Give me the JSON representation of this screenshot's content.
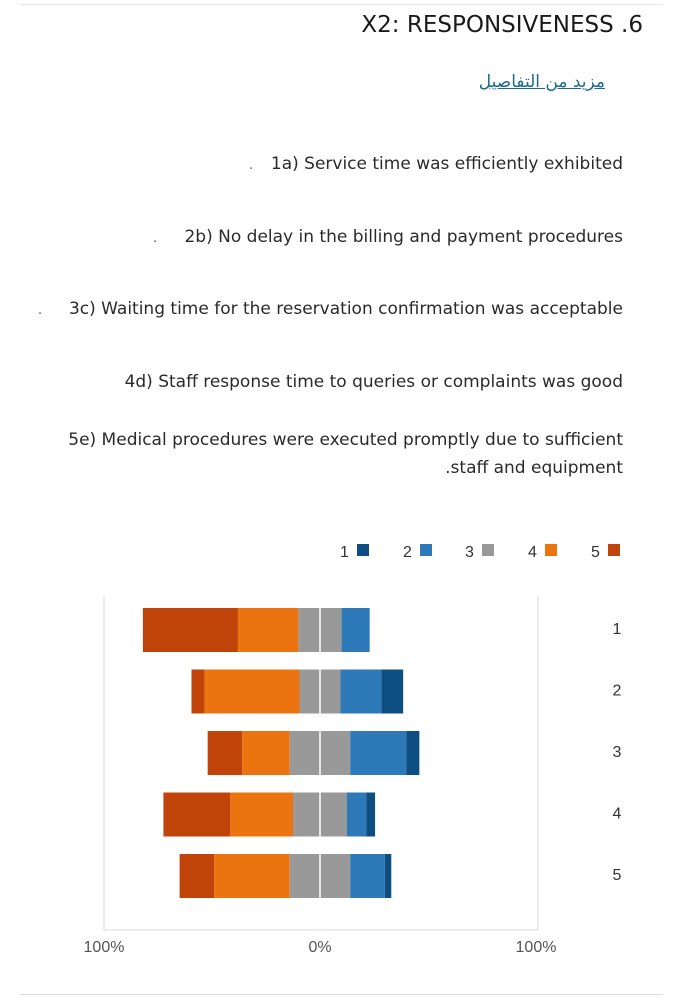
{
  "header": {
    "title": "X2: RESPONSIVENESS .6",
    "more_link": "مزيد من التفاصيل"
  },
  "items": [
    {
      "text": "1a) Service time was efficiently exhibited"
    },
    {
      "text": "2b) No delay in the billing and payment procedures"
    },
    {
      "text": "3c) Waiting time for the reservation confirmation was acceptable"
    },
    {
      "text": "4d) Staff response time to queries or complaints was good"
    },
    {
      "text": "5e) Medical procedures were executed promptly due to sufficient",
      "text_cont": ".staff and equipment"
    }
  ],
  "colors": {
    "series": [
      "#0d4d80",
      "#2e7ab8",
      "#999999",
      "#ec7410",
      "#c0440a"
    ],
    "divider": "#d8d8d8"
  },
  "chart_data": {
    "type": "bar",
    "subtype": "diverging-stacked-horizontal",
    "categories": [
      "1",
      "2",
      "3",
      "4",
      "5"
    ],
    "series": [
      {
        "name": "1",
        "values": [
          0,
          10,
          6,
          4,
          3
        ]
      },
      {
        "name": "2",
        "values": [
          13,
          19,
          26,
          9,
          16
        ]
      },
      {
        "name": "3",
        "values": [
          20,
          19,
          28,
          25,
          28
        ]
      },
      {
        "name": "4",
        "values": [
          28,
          44,
          22,
          29,
          35
        ]
      },
      {
        "name": "5",
        "values": [
          44,
          6,
          16,
          31,
          16
        ]
      }
    ],
    "center_split": "series 3 is split evenly around 0%; series 1-2 extend right, series 4-5 extend left",
    "x_ticks": [
      "100%",
      "0%",
      "100%"
    ],
    "xlim": [
      -100,
      100
    ],
    "legend": [
      "1",
      "2",
      "3",
      "4",
      "5"
    ],
    "legend_position": "top",
    "title": "",
    "xlabel": "",
    "ylabel": ""
  }
}
